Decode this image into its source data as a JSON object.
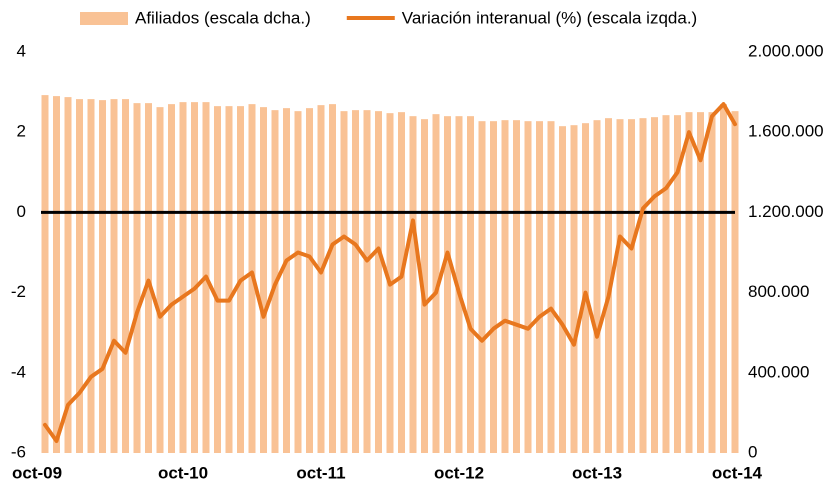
{
  "chart_data": {
    "type": "bar-line",
    "categories": [
      "oct-09",
      null,
      null,
      null,
      null,
      null,
      null,
      null,
      null,
      null,
      null,
      null,
      "oct-10",
      null,
      null,
      null,
      null,
      null,
      null,
      null,
      null,
      null,
      null,
      null,
      "oct-11",
      null,
      null,
      null,
      null,
      null,
      null,
      null,
      null,
      null,
      null,
      null,
      "oct-12",
      null,
      null,
      null,
      null,
      null,
      null,
      null,
      null,
      null,
      null,
      null,
      "oct-13",
      null,
      null,
      null,
      null,
      null,
      null,
      null,
      null,
      null,
      null,
      null,
      "oct-14"
    ],
    "series": [
      {
        "name": "Afiliados (escala dcha.)",
        "type": "bar",
        "axis": "y2",
        "color": "#f9c295",
        "values": [
          1785000,
          1780000,
          1775000,
          1765000,
          1765000,
          1760000,
          1765000,
          1765000,
          1745000,
          1745000,
          1725000,
          1740000,
          1750000,
          1750000,
          1750000,
          1730000,
          1730000,
          1730000,
          1740000,
          1725000,
          1710000,
          1720000,
          1705000,
          1720000,
          1735000,
          1740000,
          1705000,
          1710000,
          1710000,
          1705000,
          1695000,
          1700000,
          1680000,
          1665000,
          1690000,
          1680000,
          1680000,
          1680000,
          1655000,
          1655000,
          1660000,
          1660000,
          1655000,
          1655000,
          1655000,
          1630000,
          1635000,
          1645000,
          1660000,
          1670000,
          1665000,
          1665000,
          1670000,
          1675000,
          1685000,
          1685000,
          1700000,
          1700000,
          1700000,
          1740000,
          1705000
        ]
      },
      {
        "name": "Variación interanual (%) (escala izqda.)",
        "type": "line",
        "axis": "y",
        "color": "#e8771e",
        "values": [
          -5.3,
          -5.7,
          -4.8,
          -4.5,
          -4.1,
          -3.9,
          -3.2,
          -3.5,
          -2.5,
          -1.7,
          -2.6,
          -2.3,
          -2.1,
          -1.9,
          -1.6,
          -2.2,
          -2.2,
          -1.7,
          -1.5,
          -2.6,
          -1.8,
          -1.2,
          -1.0,
          -1.1,
          -1.5,
          -0.8,
          -0.6,
          -0.8,
          -1.2,
          -0.9,
          -1.8,
          -1.6,
          -0.2,
          -2.3,
          -2.0,
          -1.0,
          -2.0,
          -2.9,
          -3.2,
          -2.9,
          -2.7,
          -2.8,
          -2.9,
          -2.6,
          -2.4,
          -2.8,
          -3.3,
          -2.0,
          -3.1,
          -2.1,
          -0.6,
          -0.9,
          0.1,
          0.4,
          0.6,
          1.0,
          2.0,
          1.3,
          2.4,
          2.7,
          2.2
        ]
      }
    ],
    "ylim": [
      -6,
      4
    ],
    "yticks": [
      -6,
      -4,
      -2,
      0,
      2,
      4
    ],
    "y2lim": [
      0,
      2000000
    ],
    "y2ticks": [
      0,
      {
        "value": 400000,
        "label": "400.000"
      },
      {
        "value": 800000,
        "label": "800.000"
      },
      {
        "value": 1200000,
        "label": "1.200.000"
      },
      {
        "value": 1600000,
        "label": "1.600.000"
      },
      {
        "value": 2000000,
        "label": "2.000.000"
      }
    ],
    "zeroline": true,
    "legend": "top"
  }
}
